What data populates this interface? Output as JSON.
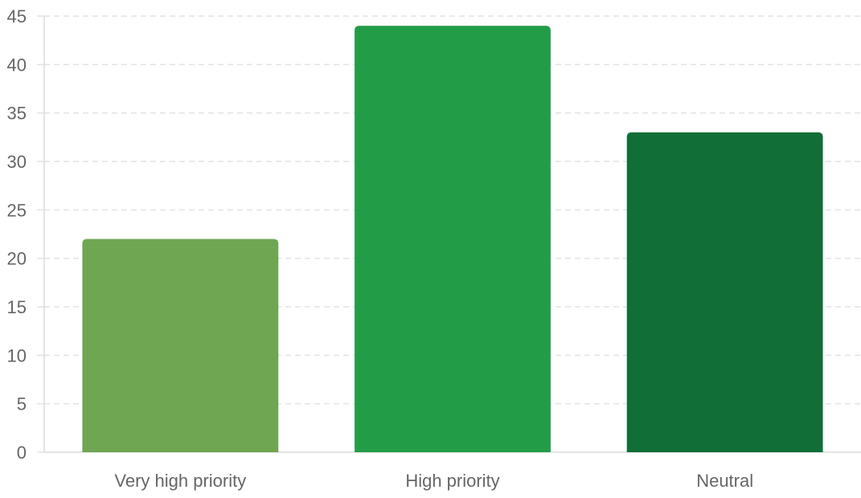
{
  "chart_data": {
    "type": "bar",
    "categories": [
      "Very high priority",
      "High priority",
      "Neutral"
    ],
    "values": [
      22,
      44,
      33
    ],
    "colors": [
      "#6ea651",
      "#239c48",
      "#106e36"
    ],
    "ylim": [
      0,
      45
    ],
    "yticks": [
      "0",
      "5",
      "10",
      "15",
      "20",
      "25",
      "30",
      "35",
      "40",
      "45"
    ],
    "grid": true,
    "title": "",
    "xlabel": "",
    "ylabel": "",
    "legend": "none"
  }
}
